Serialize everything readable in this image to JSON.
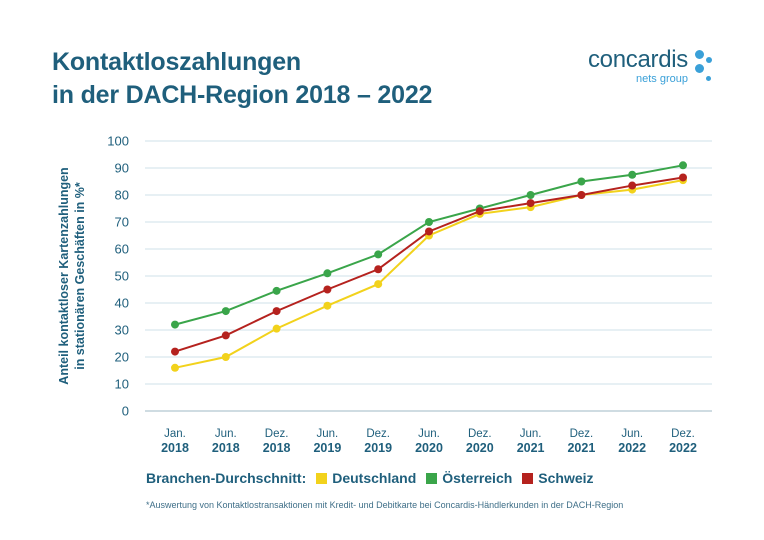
{
  "header": {
    "title_line1": "Kontaktloszahlungen",
    "title_line2": "in der DACH-Region 2018 – 2022",
    "brand_name": "concardis",
    "brand_sub": "nets group",
    "brand_color": "#3aa0d8"
  },
  "legend": {
    "title": "Branchen-Durchschnitt:"
  },
  "footnote": "*Auswertung von Kontaktlostransaktionen mit Kredit- und Debitkarte bei Concardis-Händlerkunden in der DACH-Region",
  "chart_data": {
    "type": "line",
    "title": "Kontaktloszahlungen in der DACH-Region 2018 – 2022",
    "ylabel_line1": "Anteil kontaktloser Kartenzahlungen",
    "ylabel_line2": "in stationären Geschäften in %*",
    "xlabel": "",
    "categories": [
      [
        "Jan.",
        "2018"
      ],
      [
        "Jun.",
        "2018"
      ],
      [
        "Dez.",
        "2018"
      ],
      [
        "Jun.",
        "2019"
      ],
      [
        "Dez.",
        "2019"
      ],
      [
        "Jun.",
        "2020"
      ],
      [
        "Dez.",
        "2020"
      ],
      [
        "Jun.",
        "2021"
      ],
      [
        "Dez.",
        "2021"
      ],
      [
        "Jun.",
        "2022"
      ],
      [
        "Dez.",
        "2022"
      ]
    ],
    "ylim": [
      0,
      100
    ],
    "yticks": [
      0,
      10,
      20,
      30,
      40,
      50,
      60,
      70,
      80,
      90,
      100
    ],
    "grid": true,
    "legend_position": "bottom",
    "series": [
      {
        "name": "Deutschland",
        "color": "#f2d21c",
        "values": [
          16,
          20,
          30.5,
          39,
          47,
          65,
          73,
          75.5,
          80,
          82,
          85.5
        ]
      },
      {
        "name": "Österreich",
        "color": "#3aa54a",
        "values": [
          32,
          37,
          44.5,
          51,
          58,
          70,
          75,
          80,
          85,
          87.5,
          91
        ]
      },
      {
        "name": "Schweiz",
        "color": "#b5221e",
        "values": [
          22,
          28,
          37,
          45,
          52.5,
          66.5,
          74,
          77,
          80,
          83.5,
          86.5
        ]
      }
    ]
  }
}
